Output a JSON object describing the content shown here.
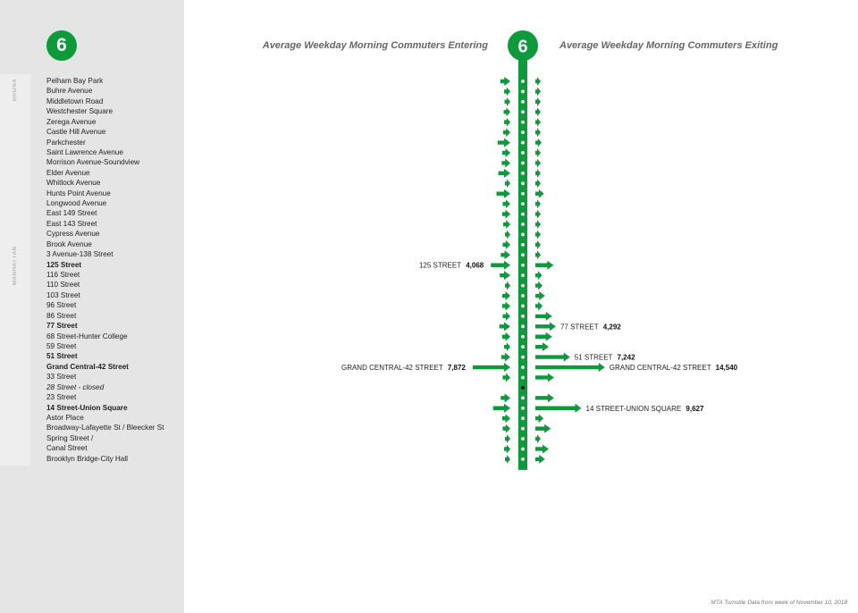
{
  "line": {
    "name": "6",
    "color": "#0c9a3a"
  },
  "boroughs": [
    {
      "name": "BRONX",
      "first_station_index": 0,
      "last_station_index": 17
    },
    {
      "name": "MANHATTAN",
      "first_station_index": 18,
      "last_station_index": 37
    }
  ],
  "stations": [
    {
      "name": "Pelham Bay Park"
    },
    {
      "name": "Buhre Avenue"
    },
    {
      "name": "Middletown Road"
    },
    {
      "name": "Westchester Square"
    },
    {
      "name": "Zerega Avenue"
    },
    {
      "name": "Castle Hill Avenue"
    },
    {
      "name": "Parkchester"
    },
    {
      "name": "Saint Lawrence Avenue"
    },
    {
      "name": "Morrison Avenue-Soundview"
    },
    {
      "name": "Elder Avenue"
    },
    {
      "name": "Whitlock Avenue"
    },
    {
      "name": "Hunts Point Avenue"
    },
    {
      "name": "Longwood Avenue"
    },
    {
      "name": "East 149 Street"
    },
    {
      "name": "East 143 Street"
    },
    {
      "name": "Cypress Avenue"
    },
    {
      "name": "Brook Avenue"
    },
    {
      "name": "3 Avenue-138 Street"
    },
    {
      "name": "125 Street",
      "bold": true
    },
    {
      "name": "116 Street"
    },
    {
      "name": "110 Street"
    },
    {
      "name": "103 Street"
    },
    {
      "name": "96 Street"
    },
    {
      "name": "86 Street"
    },
    {
      "name": "77 Street",
      "bold": true
    },
    {
      "name": "68 Street-Hunter College"
    },
    {
      "name": "59 Street"
    },
    {
      "name": "51 Street",
      "bold": true
    },
    {
      "name": "Grand Central-42 Street",
      "bold": true
    },
    {
      "name": "33 Street"
    },
    {
      "name": "28 Street - closed",
      "italic": true
    },
    {
      "name": "23 Street"
    },
    {
      "name": "14 Street-Union Square",
      "bold": true
    },
    {
      "name": "Astor Place"
    },
    {
      "name": "Broadway-Lafayette St / Bleecker St"
    },
    {
      "name": "Spring Street /"
    },
    {
      "name": "Canal Street"
    },
    {
      "name": "Brooklyn Bridge-City Hall"
    }
  ],
  "titles": {
    "entering": "Average Weekday Morning Commuters Entering",
    "exiting": "Average Weekday Morning Commuters Exiting"
  },
  "chart_data": {
    "type": "bar",
    "categories": [
      "Pelham Bay Park",
      "Buhre Avenue",
      "Middletown Road",
      "Westchester Square",
      "Zerega Avenue",
      "Castle Hill Avenue",
      "Parkchester",
      "Saint Lawrence Avenue",
      "Morrison Avenue-Soundview",
      "Elder Avenue",
      "Whitlock Avenue",
      "Hunts Point Avenue",
      "Longwood Avenue",
      "East 149 Street",
      "East 143 Street",
      "Cypress Avenue",
      "Brook Avenue",
      "3 Avenue-138 Street",
      "125 Street",
      "116 Street",
      "110 Street",
      "103 Street",
      "96 Street",
      "86 Street",
      "77 Street",
      "68 Street-Hunter College",
      "59 Street",
      "51 Street",
      "Grand Central-42 Street",
      "33 Street",
      "28 Street - closed",
      "23 Street",
      "14 Street-Union Square",
      "Astor Place",
      "Broadway-Lafayette St / Bleecker St",
      "Spring Street /",
      "Canal Street",
      "Brooklyn Bridge-City Hall"
    ],
    "series": [
      {
        "name": "Entering",
        "values": [
          2100,
          1300,
          1200,
          1400,
          1300,
          1500,
          2650,
          1700,
          1800,
          2500,
          700,
          2900,
          1600,
          1700,
          1500,
          1100,
          1600,
          2000,
          4068,
          2200,
          1100,
          1700,
          1700,
          1600,
          2300,
          1700,
          1300,
          1900,
          7872,
          1600,
          0,
          2000,
          3600,
          1700,
          1600,
          900,
          1300,
          900
        ]
      },
      {
        "name": "Exiting",
        "values": [
          800,
          800,
          700,
          700,
          700,
          900,
          1300,
          800,
          800,
          700,
          600,
          1800,
          1000,
          1000,
          1000,
          800,
          1000,
          800,
          3800,
          1400,
          1500,
          2000,
          1500,
          3500,
          4292,
          3500,
          2800,
          7242,
          14540,
          3900,
          0,
          3900,
          9627,
          1700,
          3200,
          800,
          2800,
          2000
        ]
      }
    ],
    "annotations": [
      {
        "side": "entering",
        "station": "125 STREET",
        "value": "4,068",
        "index": 18
      },
      {
        "side": "exiting",
        "station": "77 STREET",
        "value": "4,292",
        "index": 24
      },
      {
        "side": "exiting",
        "station": "51 STREET",
        "value": "7,242",
        "index": 27
      },
      {
        "side": "entering",
        "station": "GRAND CENTRAL-42 STREET",
        "value": "7,872",
        "index": 28
      },
      {
        "side": "exiting",
        "station": "GRAND CENTRAL-42 STREET",
        "value": "14,540",
        "index": 28
      },
      {
        "side": "exiting",
        "station": "14 STREET-UNION SQUARE",
        "value": "9,627",
        "index": 32
      }
    ],
    "closed_station_index": 30
  },
  "source_note": "MTA Turnstile Data from week of November 10, 2018"
}
